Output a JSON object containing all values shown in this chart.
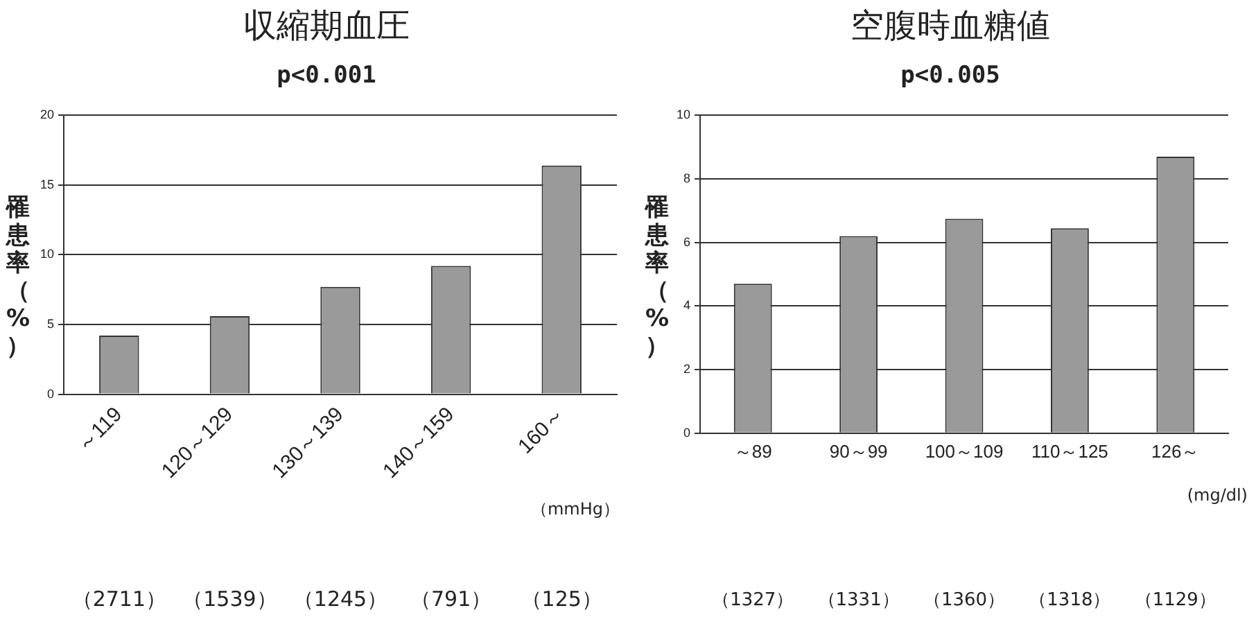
{
  "chart_data": [
    {
      "type": "bar",
      "title": "収縮期血圧",
      "subtitle": "p<0.001",
      "ylabel": "罹患率（%）",
      "categories": [
        "～119",
        "120～129",
        "130～139",
        "140～159",
        "160～"
      ],
      "values": [
        4.2,
        5.6,
        7.7,
        9.2,
        16.4
      ],
      "color": "#9a9a9a",
      "ylim": [
        0,
        20
      ],
      "yticks": [
        0,
        5,
        10,
        15,
        20
      ],
      "grid": "y",
      "annotations": [
        "（mmHg）",
        "（2711）",
        "（1539）",
        "（1245）",
        "（791）",
        "（125）"
      ]
    },
    {
      "type": "bar",
      "title": "空腹時血糖値",
      "subtitle": "p<0.005",
      "ylabel": "罹患率（%）",
      "categories": [
        "～89",
        "90～99",
        "100～109",
        "110～125",
        "126～"
      ],
      "values": [
        4.7,
        6.2,
        6.75,
        6.45,
        8.7
      ],
      "color": "#9a9a9a",
      "ylim": [
        0,
        10
      ],
      "yticks": [
        0,
        2,
        4,
        6,
        8,
        10
      ],
      "grid": "y",
      "annotations": [
        "(mg/dl)",
        "（1327）",
        "（1331）",
        "（1360）",
        "（1318）",
        "（1129）"
      ]
    }
  ]
}
